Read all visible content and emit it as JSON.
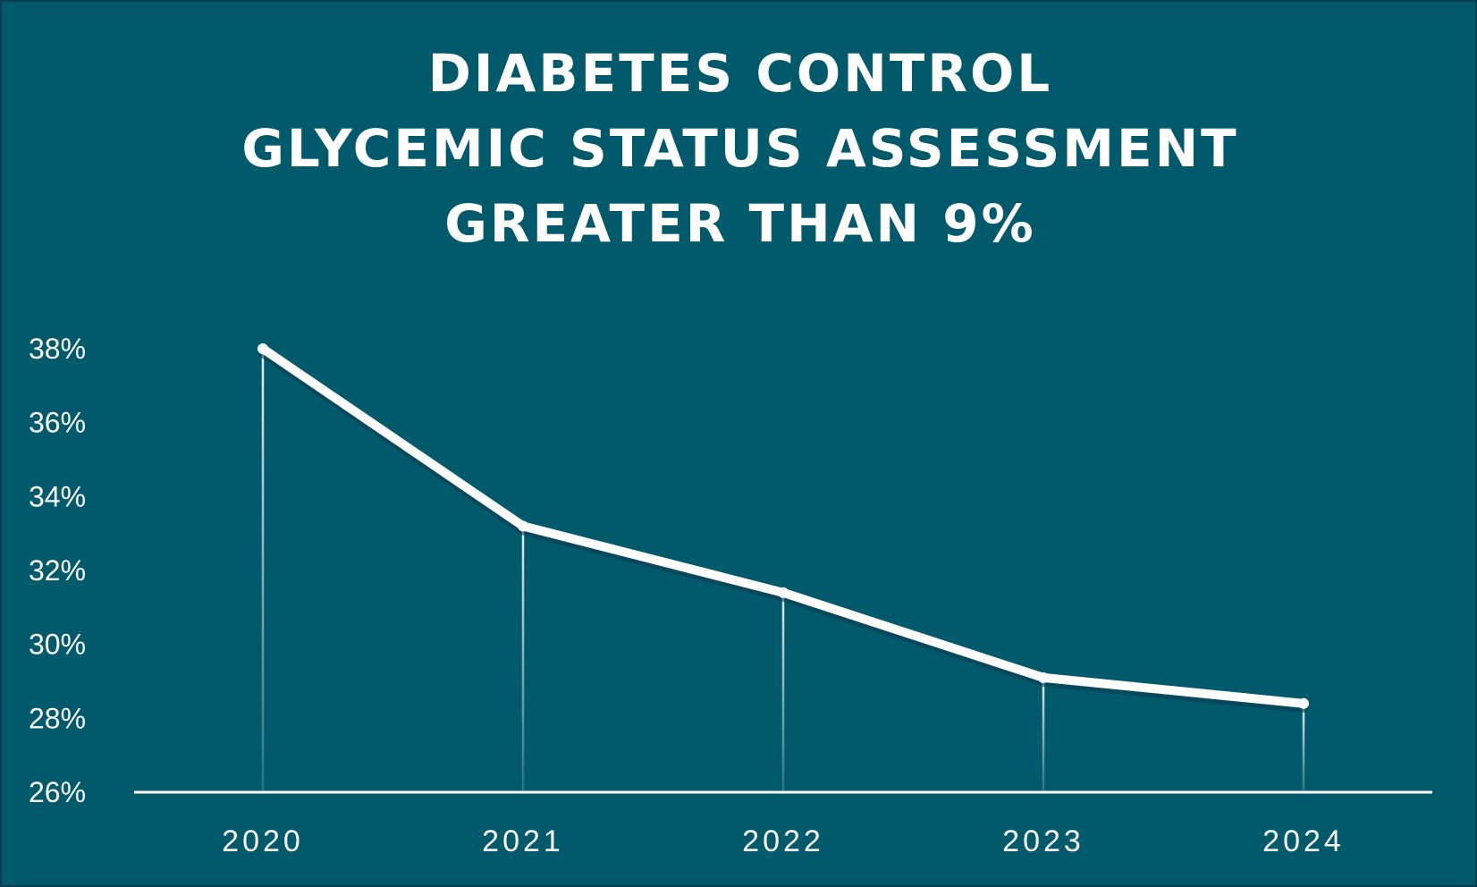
{
  "colors": {
    "background": "#005a6c",
    "line": "#ffffff"
  },
  "chart_data": {
    "type": "line",
    "title_lines": [
      "DIABETES CONTROL",
      "GLYCEMIC STATUS ASSESSMENT",
      "GREATER THAN 9%"
    ],
    "categories": [
      "2020",
      "2021",
      "2022",
      "2023",
      "2024"
    ],
    "series": [
      {
        "values": [
          38.0,
          33.2,
          31.4,
          29.1,
          28.4
        ]
      }
    ],
    "y_ticks": [
      26,
      28,
      30,
      32,
      34,
      36,
      38
    ],
    "y_tick_labels": [
      "26%",
      "28%",
      "30%",
      "32%",
      "34%",
      "36%",
      "38%"
    ],
    "ylim": [
      26,
      38
    ],
    "xlabel": "",
    "ylabel": "",
    "grid": false,
    "drop_lines": true
  }
}
